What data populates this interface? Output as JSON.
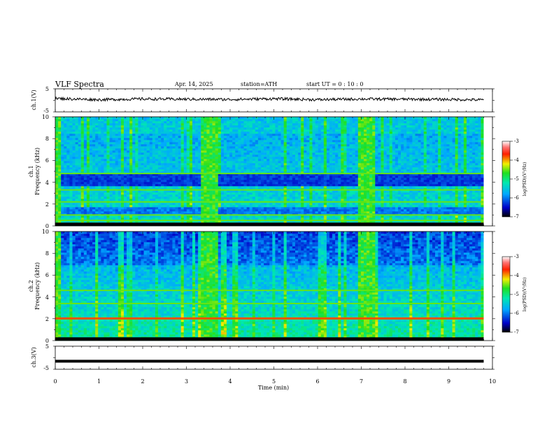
{
  "header": {
    "title": "VLF  Spectra",
    "date": "Apr. 14, 2025",
    "station": "station=ATH",
    "start": "start  UT  =    0 : 10 : 0"
  },
  "xaxis": {
    "label": "Time  (min)",
    "ticks": [
      "0",
      "1",
      "2",
      "3",
      "4",
      "5",
      "6",
      "7",
      "8",
      "9",
      "10"
    ]
  },
  "panels": {
    "ch1_wave": {
      "label": "ch.1(V)",
      "ticks": [
        "5",
        "-5"
      ]
    },
    "ch1_spec": {
      "label_ch": "ch.1",
      "label_freq": "Frequency  (kHz)",
      "ticks": [
        "10",
        "8",
        "6",
        "4",
        "2",
        "0"
      ]
    },
    "ch2_spec": {
      "label_ch": "ch.2",
      "label_freq": "Frequency  (kHz)",
      "ticks": [
        "10",
        "8",
        "6",
        "4",
        "2",
        "0"
      ]
    },
    "ch3_wave": {
      "label": "ch.3(V)",
      "ticks": [
        "5",
        "-5"
      ]
    }
  },
  "colorbar": {
    "label": "log(PSD)(V²/Hz)",
    "ticks": [
      "-3",
      "-4",
      "-5",
      "-6",
      "-7"
    ]
  },
  "chart_data": [
    {
      "type": "line",
      "title": "",
      "ylabel": "ch.1(V)",
      "xlabel": "Time  (min)",
      "xlim": [
        0,
        10
      ],
      "ylim": [
        -5,
        5
      ],
      "series": [
        {
          "x": [
            0.0,
            1.0,
            2.0,
            3.0,
            4.0,
            5.0,
            6.0,
            7.0,
            8.0,
            9.0,
            9.8
          ],
          "values": [
            0.8,
            0.3,
            0.6,
            0.5,
            0.4,
            0.7,
            0.3,
            0.6,
            0.5,
            0.4,
            0.2
          ]
        }
      ]
    },
    {
      "type": "heatmap",
      "title": "",
      "ylabel": "Frequency  (kHz)",
      "xlabel": "Time  (min)",
      "xlim": [
        0,
        10
      ],
      "ylim": [
        0,
        10
      ],
      "z_label": "log(PSD)(V²/Hz)",
      "zlim": [
        -7,
        -3
      ],
      "data_end_min": 9.8,
      "bright_intervals_min": [
        [
          0.0,
          0.15
        ],
        [
          3.35,
          3.75
        ],
        [
          6.95,
          7.35
        ]
      ],
      "dark_band_khz": [
        3.6,
        4.8
      ],
      "lines_khz": [
        0.5,
        1.0,
        2.2,
        3.3,
        4.8
      ]
    },
    {
      "type": "heatmap",
      "title": "",
      "ylabel": "Frequency  (kHz)",
      "xlabel": "Time  (min)",
      "xlim": [
        0,
        10
      ],
      "ylim": [
        0,
        10
      ],
      "z_label": "log(PSD)(V²/Hz)",
      "zlim": [
        -7,
        -3
      ],
      "data_end_min": 9.8,
      "bright_intervals_min": [
        [
          0.0,
          0.15
        ],
        [
          3.35,
          3.75
        ],
        [
          6.95,
          7.35
        ]
      ],
      "lines_khz": [
        2.0,
        3.4,
        4.6
      ],
      "strong_line_khz": 2.0
    },
    {
      "type": "line",
      "title": "",
      "ylabel": "ch.3(V)",
      "xlabel": "Time  (min)",
      "xlim": [
        0,
        10
      ],
      "ylim": [
        -5,
        5
      ],
      "series": [
        {
          "x": [
            0.0,
            9.8
          ],
          "values": [
            -1.5,
            -1.5
          ]
        }
      ]
    }
  ]
}
